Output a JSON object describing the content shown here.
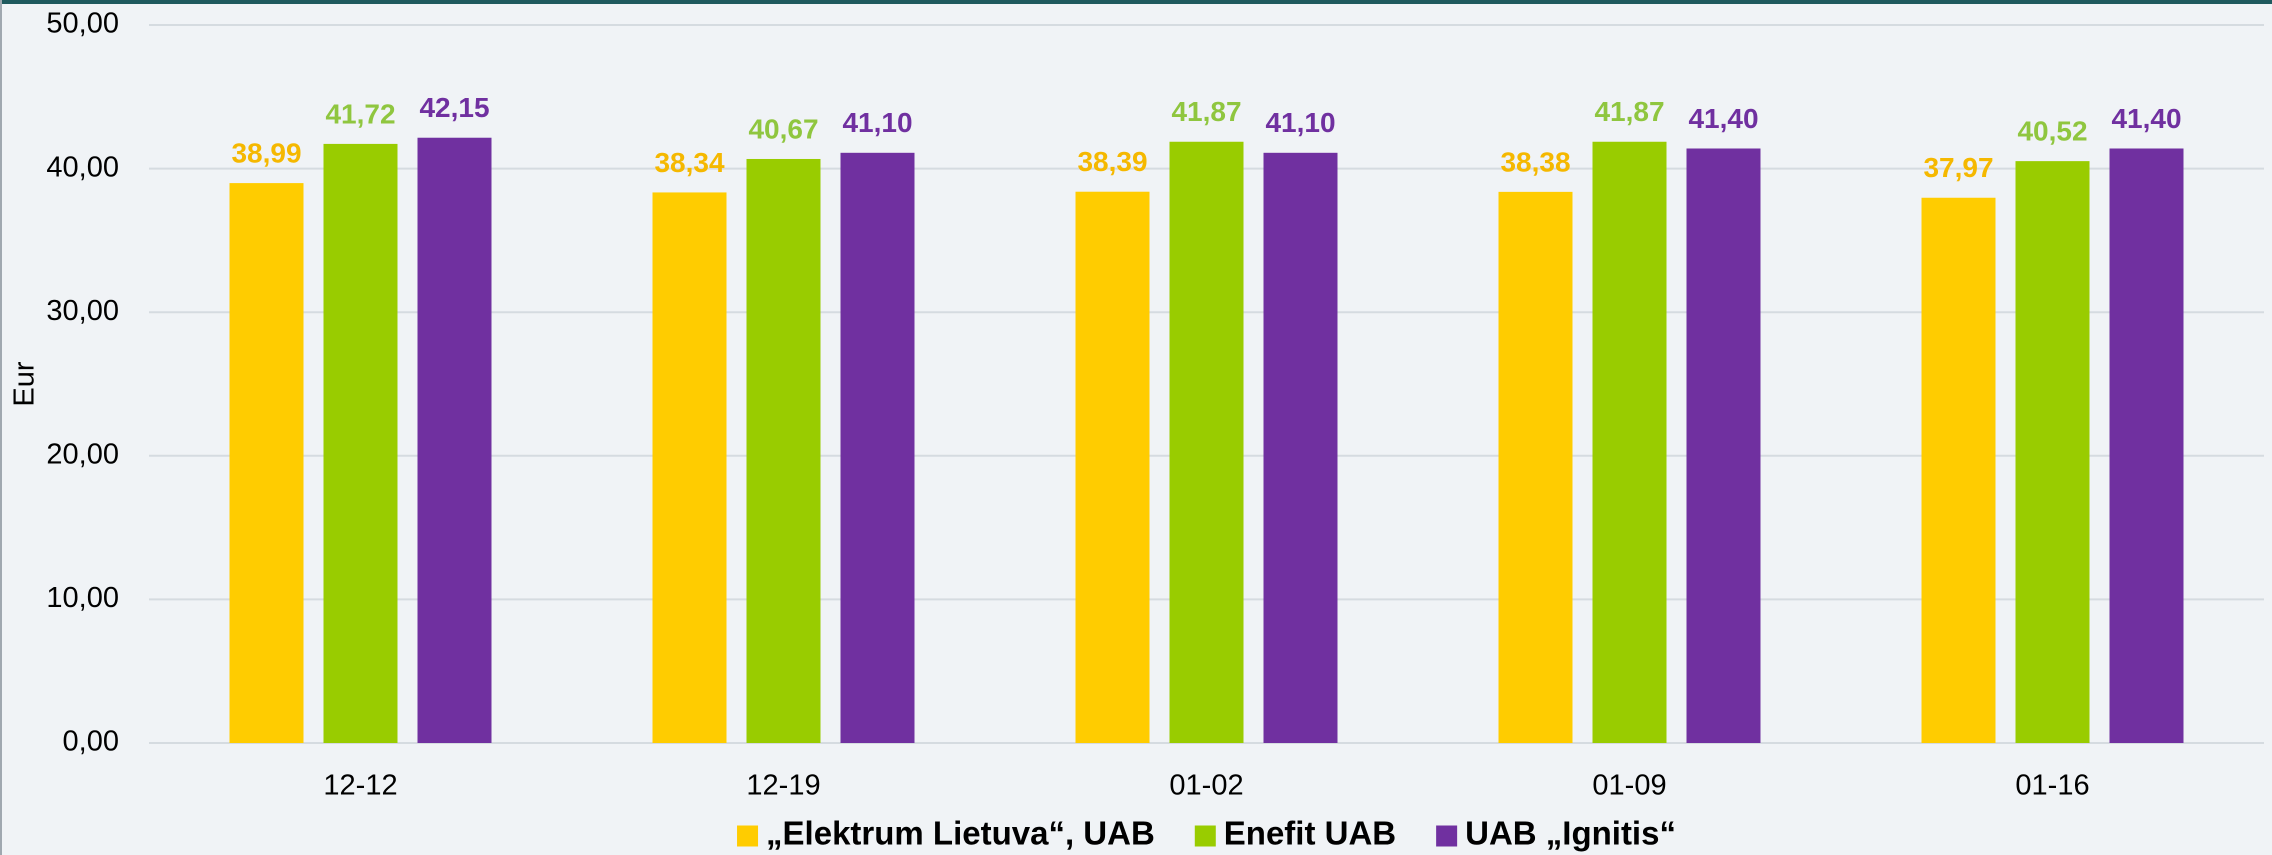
{
  "chart_data": {
    "type": "bar",
    "y_label": "Eur",
    "categories": [
      "12-12",
      "12-19",
      "01-02",
      "01-09",
      "01-16"
    ],
    "series": [
      {
        "name": "„Elektrum Lietuva“, UAB",
        "color": "#ffcc00",
        "values": [
          38.99,
          38.34,
          38.39,
          38.38,
          37.97
        ],
        "value_labels": [
          "38,99",
          "38,34",
          "38,39",
          "38,38",
          "37,97"
        ]
      },
      {
        "name": "Enefit UAB",
        "color": "#99cc00",
        "values": [
          41.72,
          40.67,
          41.87,
          41.87,
          40.52
        ],
        "value_labels": [
          "41,72",
          "40,67",
          "41,87",
          "41,87",
          "40,52"
        ]
      },
      {
        "name": "UAB „Ignitis“",
        "color": "#7030a0",
        "values": [
          42.15,
          41.1,
          41.1,
          41.4,
          41.4
        ],
        "value_labels": [
          "42,15",
          "41,10",
          "41,10",
          "41,40",
          "41,40"
        ]
      }
    ],
    "ylim": [
      0,
      50
    ],
    "yticks": [
      {
        "value": 0,
        "label": "0,00"
      },
      {
        "value": 10,
        "label": "10,00"
      },
      {
        "value": 20,
        "label": "20,00"
      },
      {
        "value": 30,
        "label": "30,00"
      },
      {
        "value": 40,
        "label": "40,00"
      },
      {
        "value": 50,
        "label": "50,00"
      }
    ],
    "grid": true,
    "legend": "bottom"
  }
}
